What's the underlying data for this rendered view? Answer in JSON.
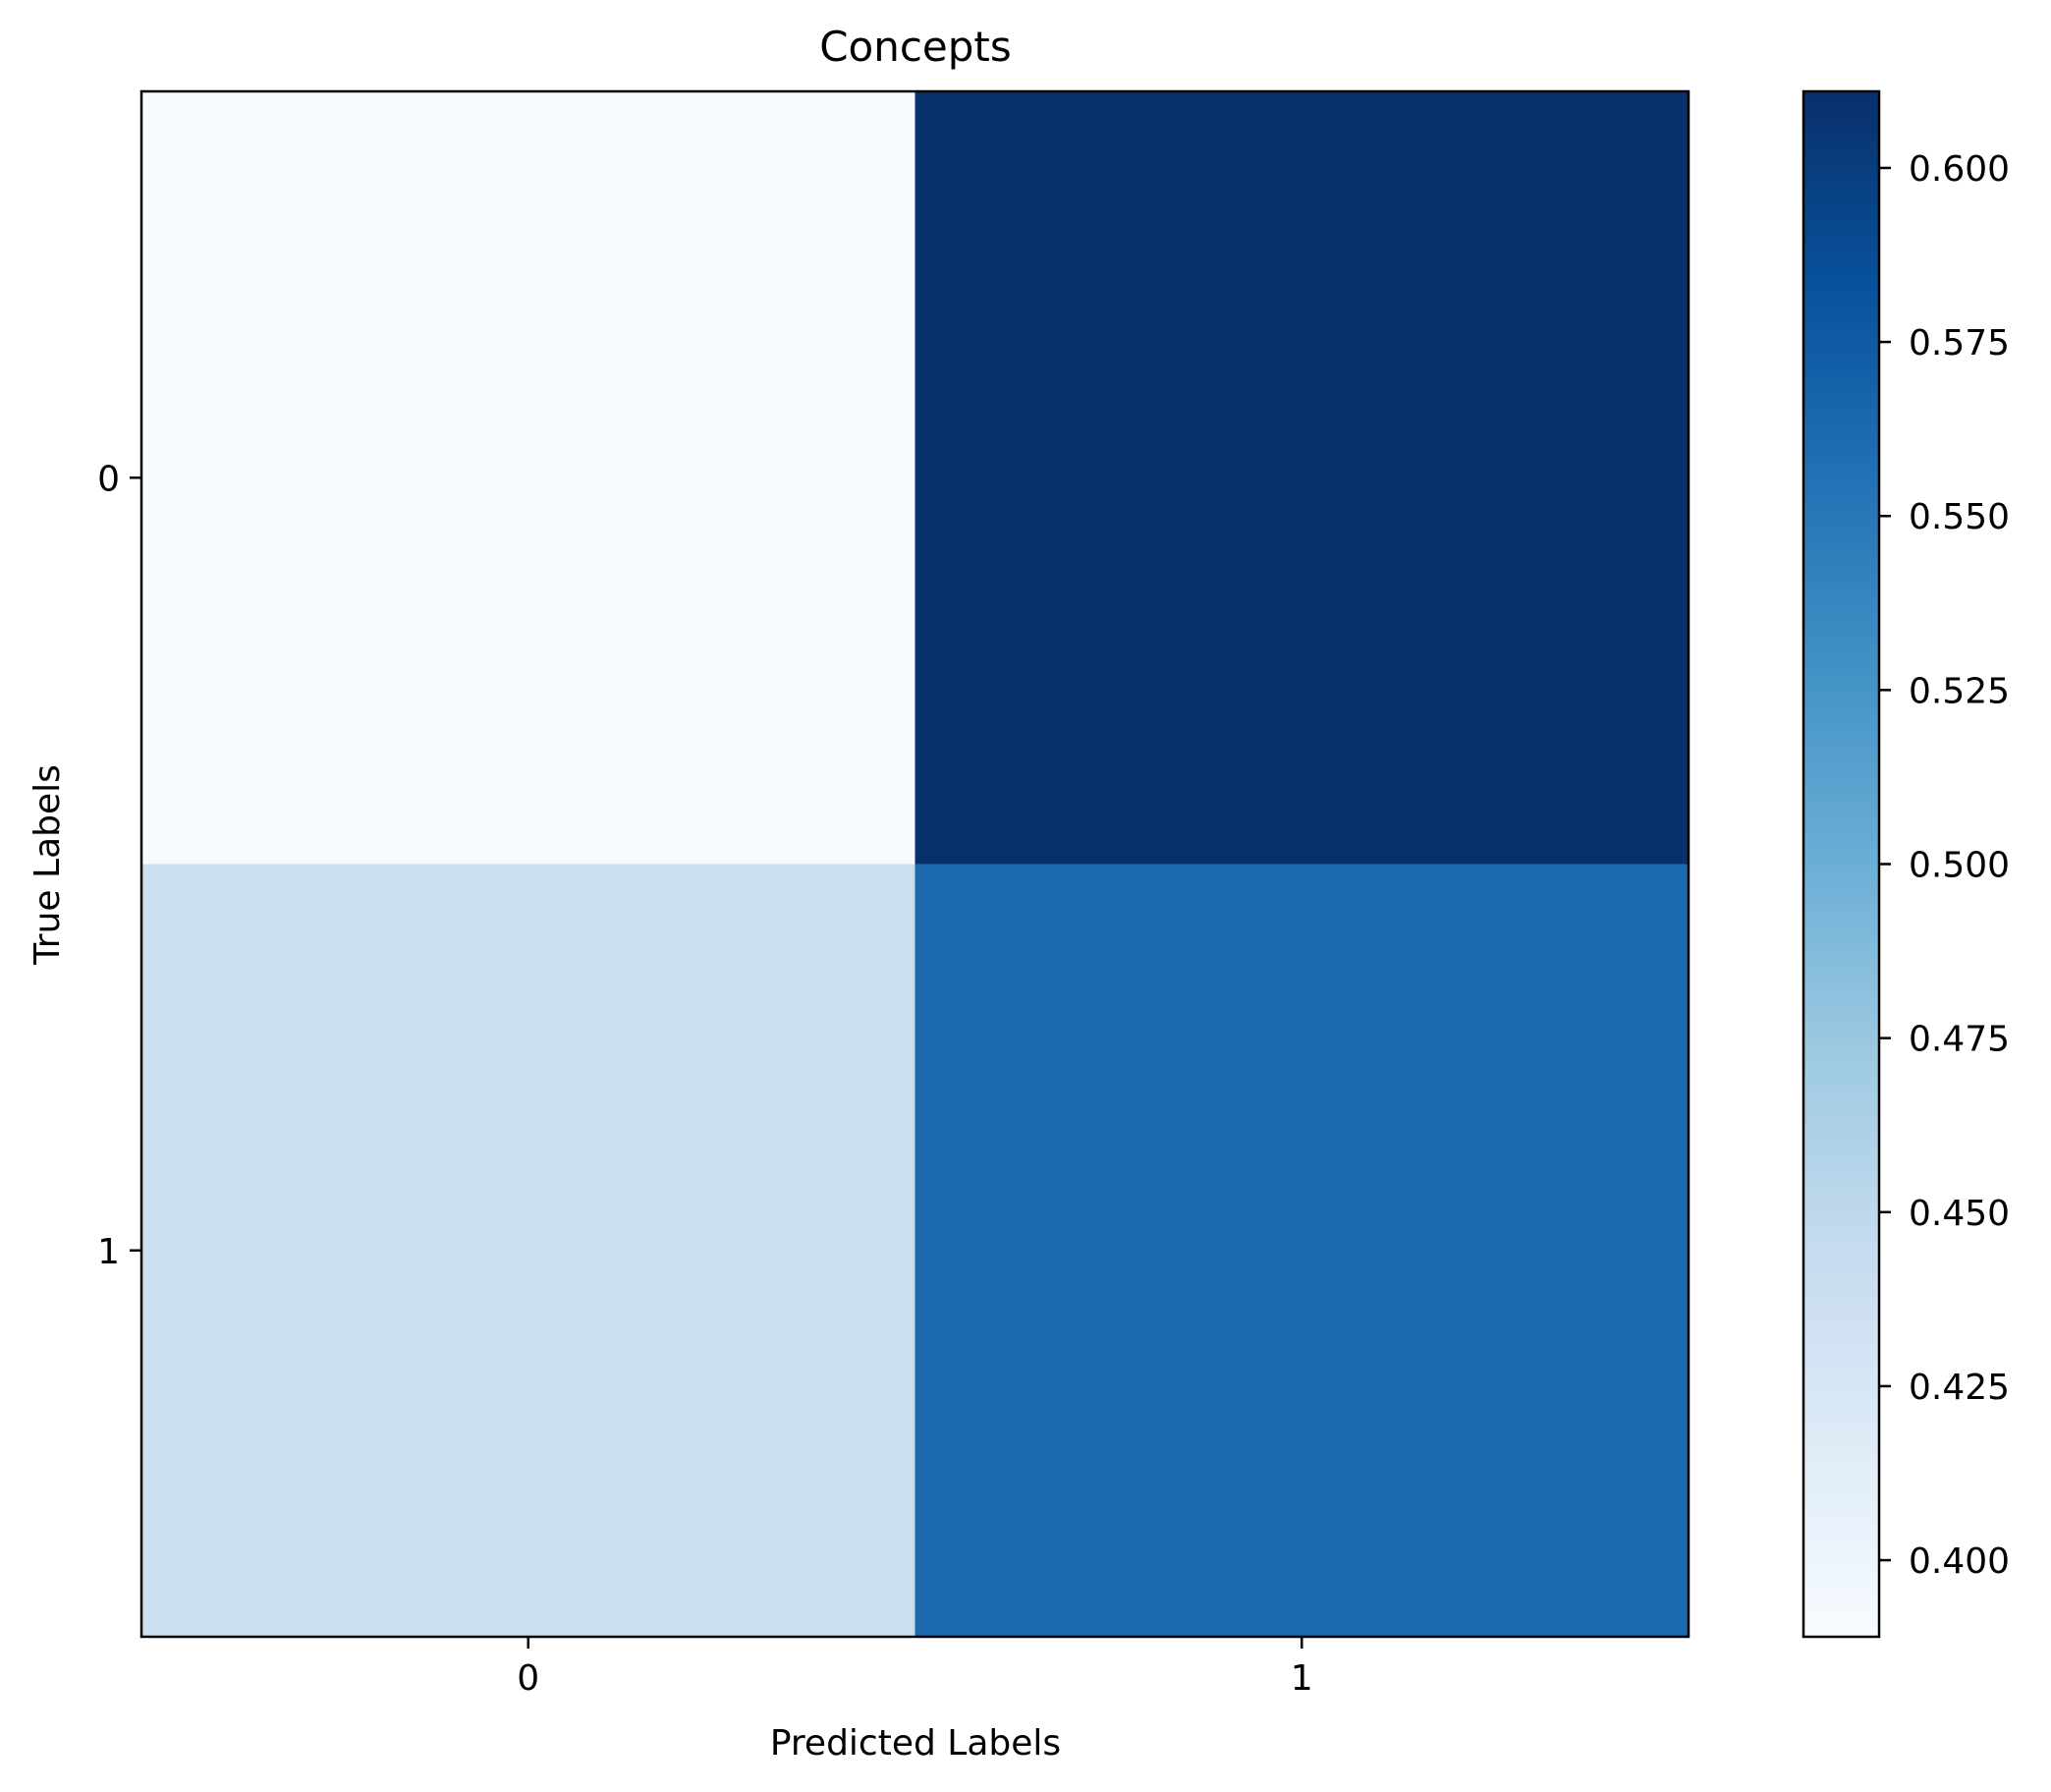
{
  "chart_data": {
    "type": "heatmap",
    "title": "Concepts",
    "xlabel": "Predicted Labels",
    "ylabel": "True Labels",
    "x_categories": [
      "0",
      "1"
    ],
    "y_categories": [
      "0",
      "1"
    ],
    "values": [
      [
        0.389,
        0.611
      ],
      [
        0.438,
        0.562
      ]
    ],
    "colormap": "Blues",
    "colorbar": {
      "min": 0.389,
      "max": 0.611,
      "ticks": [
        0.4,
        0.425,
        0.45,
        0.475,
        0.5,
        0.525,
        0.55,
        0.575,
        0.6
      ],
      "tick_labels": [
        "0.400",
        "0.425",
        "0.450",
        "0.475",
        "0.500",
        "0.525",
        "0.550",
        "0.575",
        "0.600"
      ]
    }
  }
}
